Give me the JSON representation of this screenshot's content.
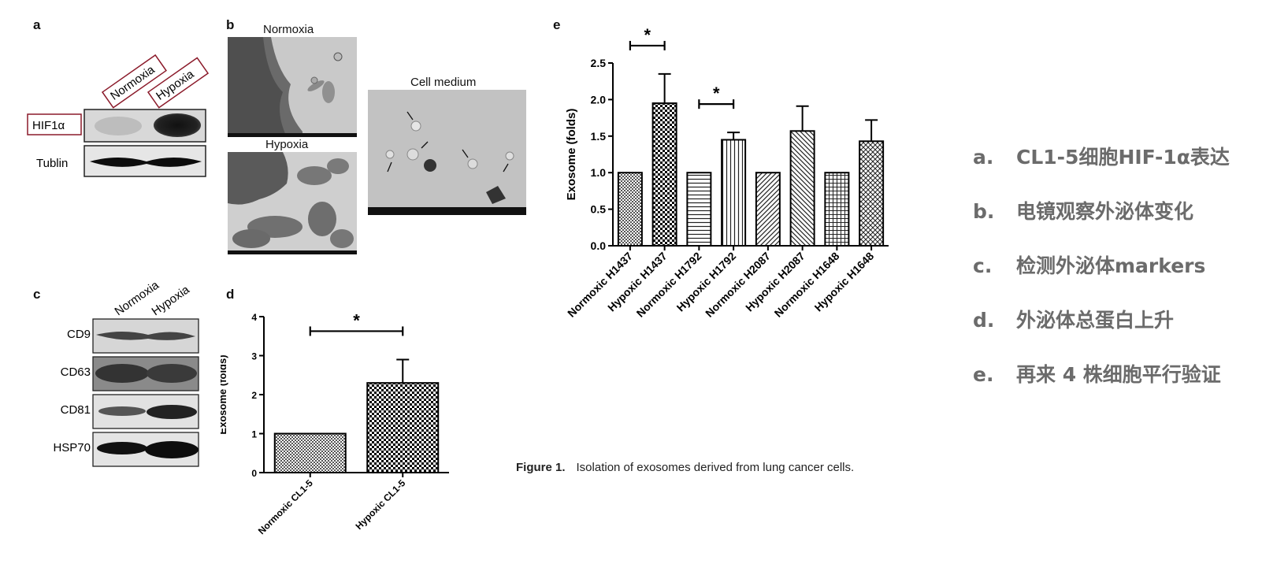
{
  "panels": {
    "a": {
      "label": "a",
      "lanes": [
        "Normoxia",
        "Hypoxia"
      ],
      "rows": [
        "HIF1α",
        "Tublin"
      ]
    },
    "b": {
      "label": "b",
      "images": [
        {
          "title": "Normoxia"
        },
        {
          "title": "Hypoxia"
        },
        {
          "title": "Cell medium"
        }
      ]
    },
    "c": {
      "label": "c",
      "lanes": [
        "Normoxia",
        "Hypoxia"
      ],
      "rows": [
        "CD9",
        "CD63",
        "CD81",
        "HSP70"
      ]
    },
    "d": {
      "label": "d"
    },
    "e": {
      "label": "e"
    }
  },
  "chart_data": [
    {
      "id": "d",
      "type": "bar",
      "categories": [
        "Normoxic CL1-5",
        "Hypoxic CL1-5"
      ],
      "values": [
        1.0,
        2.3
      ],
      "errors": [
        0,
        0.6
      ],
      "ylabel": "Exosome (folds)",
      "xlabel": "",
      "ylim": [
        0,
        4
      ],
      "yticks": [
        "0",
        "1",
        "2",
        "3",
        "4"
      ],
      "significance": [
        {
          "between": [
            0,
            1
          ],
          "label": "*"
        }
      ]
    },
    {
      "id": "e",
      "type": "bar",
      "categories": [
        "Normoxic H1437",
        "Hypoxic H1437",
        "Normoxic H1792",
        "Hypoxic H1792",
        "Normoxic H2087",
        "Hypoxic H2087",
        "Normoxic H1648",
        "Hypoxic H1648"
      ],
      "values": [
        1.0,
        1.95,
        1.0,
        1.45,
        1.0,
        1.57,
        1.0,
        1.43
      ],
      "errors": [
        0,
        0.4,
        0,
        0.1,
        0,
        0.34,
        0,
        0.29
      ],
      "ylabel": "Exosome (folds)",
      "xlabel": "",
      "ylim": [
        0,
        2.5
      ],
      "yticks": [
        "0.0",
        "0.5",
        "1.0",
        "1.5",
        "2.0",
        "2.5"
      ],
      "significance": [
        {
          "between": [
            0,
            1
          ],
          "label": "*"
        },
        {
          "between": [
            2,
            3
          ],
          "label": "*"
        }
      ]
    }
  ],
  "caption": {
    "figure": "Figure 1.",
    "text": "Isolation of exosomes derived from lung cancer cells."
  },
  "summary": [
    {
      "key": "a.",
      "text": "CL1-5细胞HIF-1α表达"
    },
    {
      "key": "b.",
      "text": "电镜观察外泌体变化"
    },
    {
      "key": "c.",
      "text": "检测外泌体markers"
    },
    {
      "key": "d.",
      "text": "外泌体总蛋白上升"
    },
    {
      "key": "e.",
      "text": "再来 4 株细胞平行验证"
    }
  ]
}
